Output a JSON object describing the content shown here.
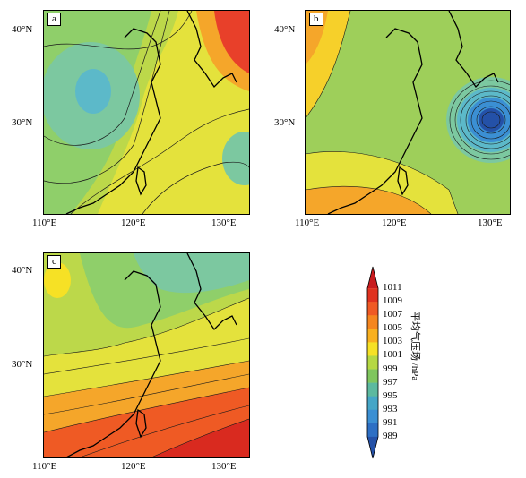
{
  "panels": {
    "a": {
      "label": "a"
    },
    "b": {
      "label": "b"
    },
    "c": {
      "label": "c"
    }
  },
  "axes": {
    "lat_ticks": [
      "40°N",
      "30°N"
    ],
    "lon_ticks": [
      "110°E",
      "120°E",
      "130°E"
    ]
  },
  "colorbar": {
    "title": "平均气压场 /hPa",
    "labels": [
      "1011",
      "1009",
      "1007",
      "1005",
      "1003",
      "1001",
      "999",
      "997",
      "995",
      "993",
      "991",
      "989"
    ],
    "colors": [
      "#c81b1e",
      "#e0321f",
      "#ef5a24",
      "#f5861f",
      "#f9b01f",
      "#f6e125",
      "#b5d843",
      "#7fc65e",
      "#5cb99f",
      "#45a6c7",
      "#3b8fd3",
      "#2d6fc4",
      "#2451a8"
    ]
  }
}
